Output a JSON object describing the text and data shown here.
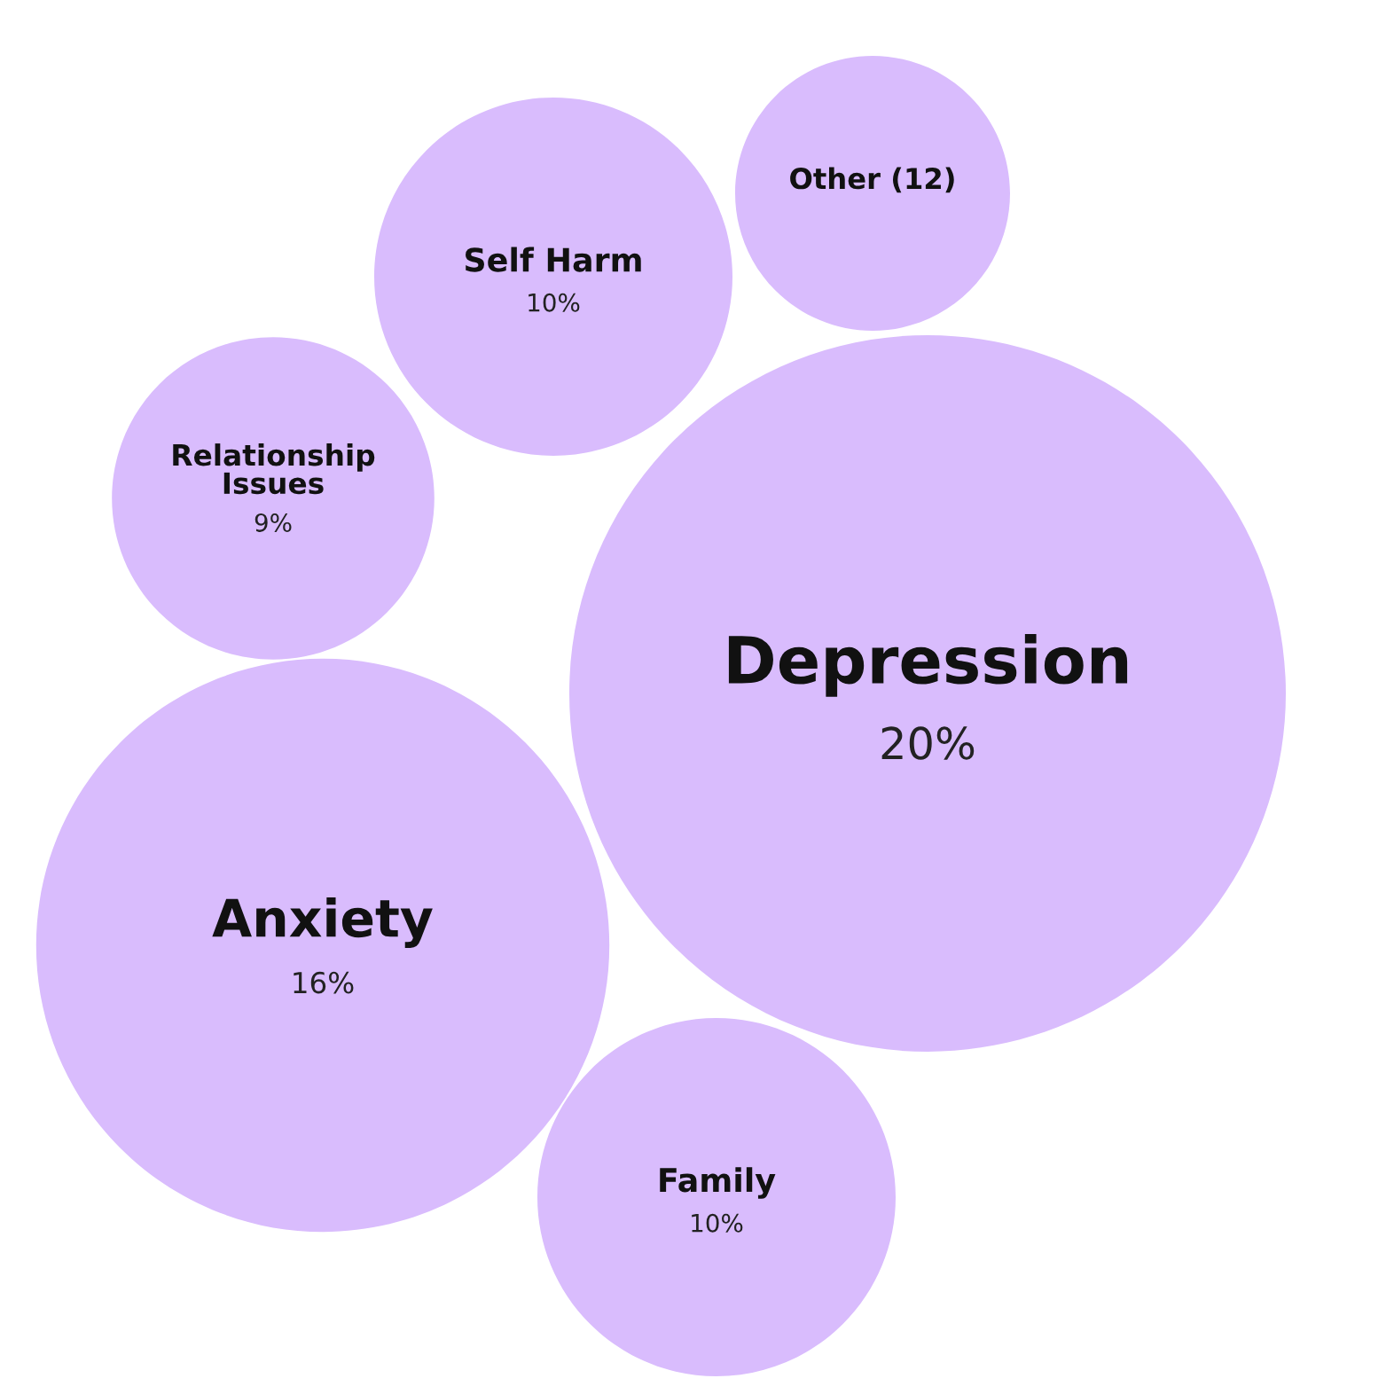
{
  "chart_data": {
    "type": "other",
    "categories": [
      "Depression",
      "Anxiety",
      "Self Harm",
      "Family",
      "Relationship Issues",
      "Other (12)"
    ],
    "values": [
      20,
      16,
      10,
      10,
      9,
      null
    ],
    "value_labels": [
      "20%",
      "16%",
      "10%",
      "10%",
      "9%",
      null
    ],
    "colors": [
      "#d9bcfd",
      "#d9bcfd",
      "#d9bcfd",
      "#d9bcfd",
      "#d9bcfd",
      "#d9bcfd"
    ]
  }
}
